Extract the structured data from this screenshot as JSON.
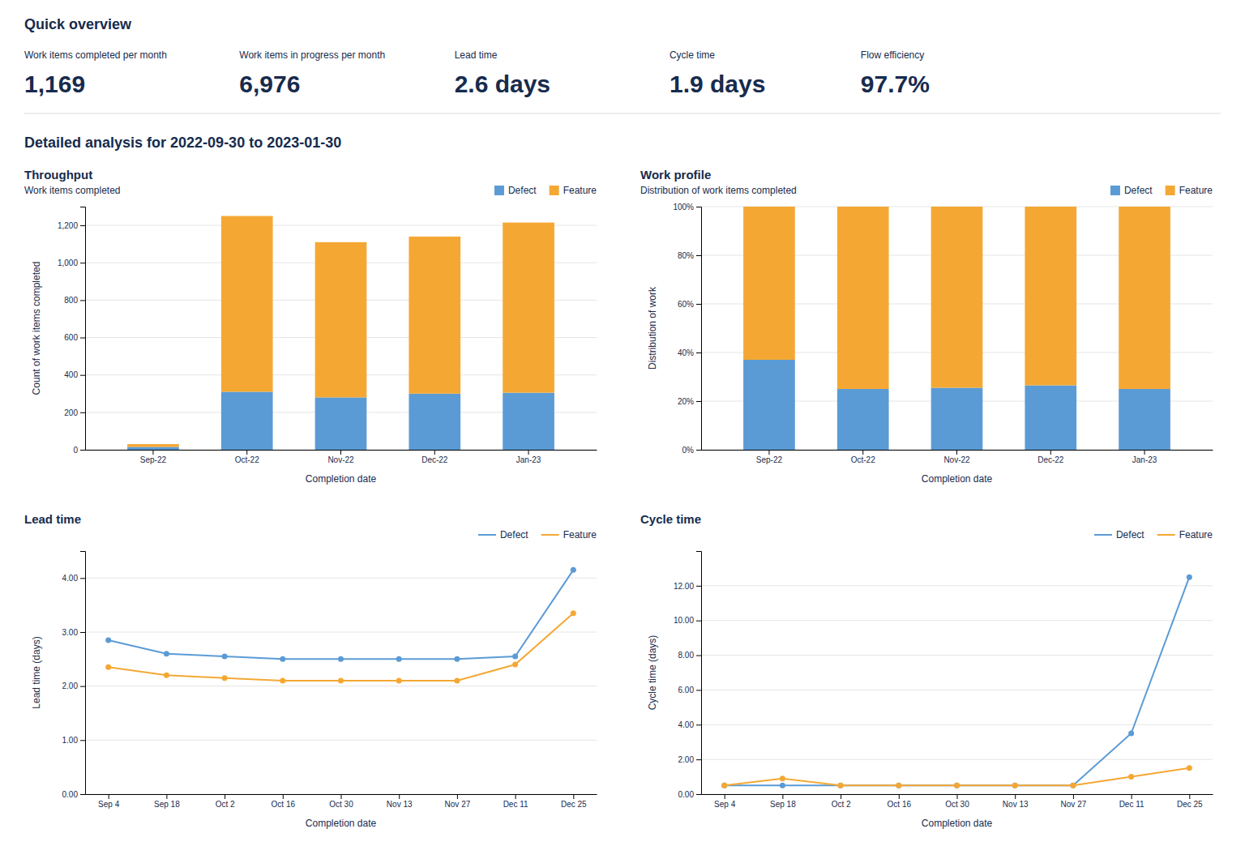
{
  "title": "Quick overview",
  "metrics": [
    {
      "label": "Work items completed per month",
      "value": "1,169"
    },
    {
      "label": "Work items in progress per month",
      "value": "6,976"
    },
    {
      "label": "Lead time",
      "value": "2.6 days"
    },
    {
      "label": "Cycle time",
      "value": "1.9 days"
    },
    {
      "label": "Flow efficiency",
      "value": "97.7%"
    }
  ],
  "heading": "Detailed analysis for 2022-09-30 to 2023-01-30",
  "chart_data": [
    {
      "type": "bar",
      "stacked": true,
      "title": "Throughput",
      "subtitle": "Work items completed",
      "xlabel": "Completion date",
      "ylabel": "Count of work items completed",
      "categories": [
        "Sep-22",
        "Oct-22",
        "Nov-22",
        "Dec-22",
        "Jan-23"
      ],
      "series": [
        {
          "name": "Defect",
          "color": "#5B9BD5",
          "values": [
            15,
            310,
            280,
            300,
            305
          ]
        },
        {
          "name": "Feature",
          "color": "#F4A833",
          "values": [
            15,
            940,
            830,
            840,
            910
          ]
        }
      ],
      "ylim": [
        0,
        1300
      ],
      "yticks": [
        0,
        200,
        400,
        600,
        800,
        {
          "value": 1000,
          "label": "1,000"
        },
        {
          "value": 1200,
          "label": "1,200"
        }
      ],
      "grid": true,
      "legend": "upper right"
    },
    {
      "type": "bar",
      "stacked": true,
      "title": "Work profile",
      "subtitle": "Distribution of work items completed",
      "xlabel": "Completion date",
      "ylabel": "Distribution of work",
      "categories": [
        "Sep-22",
        "Oct-22",
        "Nov-22",
        "Dec-22",
        "Jan-23"
      ],
      "series": [
        {
          "name": "Defect",
          "color": "#5B9BD5",
          "values": [
            37,
            25,
            25.5,
            26.5,
            25
          ]
        },
        {
          "name": "Feature",
          "color": "#F4A833",
          "values": [
            63,
            75,
            74.5,
            73.5,
            75
          ]
        }
      ],
      "ylim": [
        0,
        100
      ],
      "yticks": [
        {
          "value": 0,
          "label": "0%"
        },
        {
          "value": 20,
          "label": "20%"
        },
        {
          "value": 40,
          "label": "40%"
        },
        {
          "value": 60,
          "label": "60%"
        },
        {
          "value": 80,
          "label": "80%"
        },
        {
          "value": 100,
          "label": "100%"
        }
      ],
      "grid": true,
      "legend": "upper right"
    },
    {
      "type": "line",
      "title": "Lead time",
      "xlabel": "Completion date",
      "ylabel": "Lead time (days)",
      "categories": [
        "Sep 4",
        "Sep 18",
        "Oct 2",
        "Oct 16",
        "Oct 30",
        "Nov 13",
        "Nov 27",
        "Dec 11",
        "Dec 25"
      ],
      "series": [
        {
          "name": "Defect",
          "color": "#5B9BD5",
          "values": [
            2.85,
            2.6,
            2.55,
            2.5,
            2.5,
            2.5,
            2.5,
            2.55,
            4.15
          ]
        },
        {
          "name": "Feature",
          "color": "#F4A833",
          "values": [
            2.35,
            2.2,
            2.15,
            2.1,
            2.1,
            2.1,
            2.1,
            2.4,
            3.35
          ]
        }
      ],
      "ylim": [
        0,
        4.5
      ],
      "yticks": [
        {
          "value": 0,
          "label": "0.00"
        },
        {
          "value": 1,
          "label": "1.00"
        },
        {
          "value": 2,
          "label": "2.00"
        },
        {
          "value": 3,
          "label": "3.00"
        },
        {
          "value": 4,
          "label": "4.00"
        }
      ],
      "grid": true,
      "legend": "upper right",
      "marker": "circle"
    },
    {
      "type": "line",
      "title": "Cycle time",
      "xlabel": "Completion date",
      "ylabel": "Cycle time (days)",
      "categories": [
        "Sep 4",
        "Sep 18",
        "Oct 2",
        "Oct 16",
        "Oct 30",
        "Nov 13",
        "Nov 27",
        "Dec 11",
        "Dec 25"
      ],
      "series": [
        {
          "name": "Defect",
          "color": "#5B9BD5",
          "values": [
            0.5,
            0.5,
            0.5,
            0.5,
            0.5,
            0.5,
            0.5,
            3.5,
            12.5
          ]
        },
        {
          "name": "Feature",
          "color": "#F4A833",
          "values": [
            0.5,
            0.9,
            0.5,
            0.5,
            0.5,
            0.5,
            0.5,
            1.0,
            1.5
          ]
        }
      ],
      "ylim": [
        0,
        14
      ],
      "yticks": [
        {
          "value": 0,
          "label": "0.00"
        },
        {
          "value": 2,
          "label": "2.00"
        },
        {
          "value": 4,
          "label": "4.00"
        },
        {
          "value": 6,
          "label": "6.00"
        },
        {
          "value": 8,
          "label": "8.00"
        },
        {
          "value": 10,
          "label": "10.00"
        },
        {
          "value": 12,
          "label": "12.00"
        }
      ],
      "grid": true,
      "legend": "upper right",
      "marker": "circle"
    }
  ]
}
